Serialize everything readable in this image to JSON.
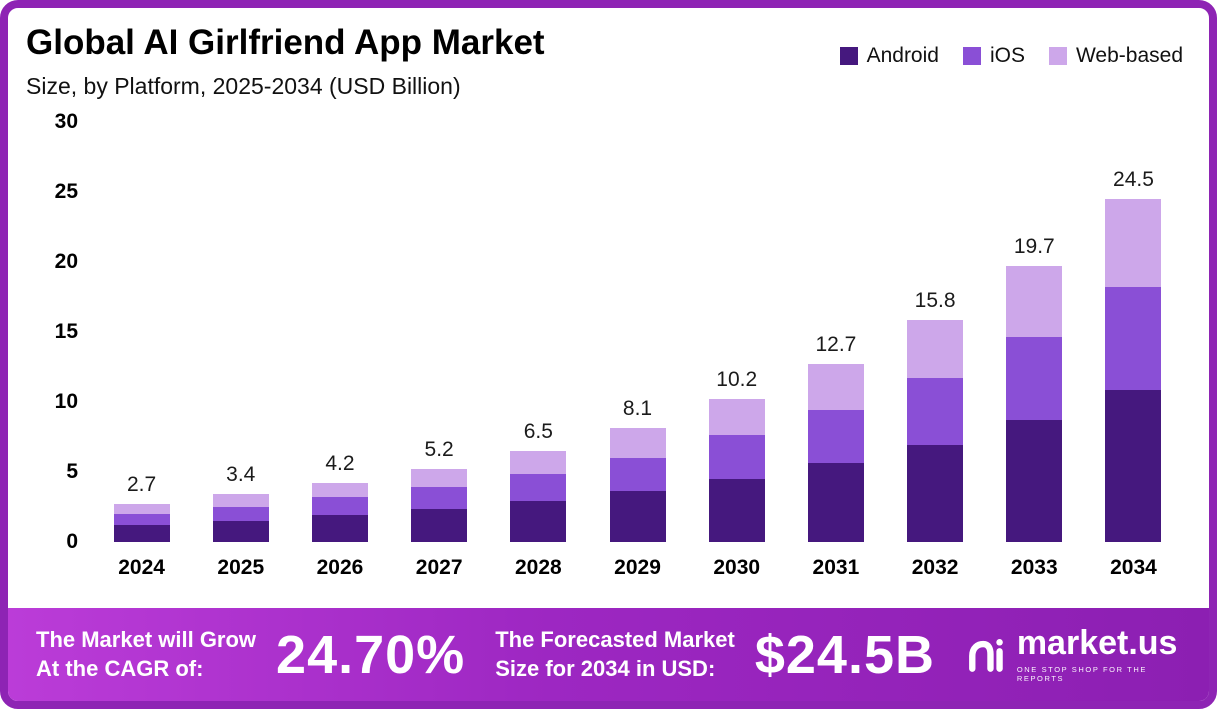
{
  "header": {
    "title": "Global AI Girlfriend App Market",
    "subtitle": "Size, by Platform, 2025-2034 (USD Billion)"
  },
  "legend": [
    {
      "label": "Android",
      "color": "#45187e"
    },
    {
      "label": "iOS",
      "color": "#8a4fd6"
    },
    {
      "label": "Web-based",
      "color": "#cda7ea"
    }
  ],
  "chart_data": {
    "type": "bar",
    "stacked": true,
    "title": "Global AI Girlfriend App Market Size, by Platform, 2025-2034 (USD Billion)",
    "categories": [
      "2024",
      "2025",
      "2026",
      "2027",
      "2028",
      "2029",
      "2030",
      "2031",
      "2032",
      "2033",
      "2034"
    ],
    "series": [
      {
        "name": "Android",
        "color": "#45187e",
        "values": [
          1.2,
          1.5,
          1.9,
          2.3,
          2.9,
          3.6,
          4.5,
          5.6,
          6.9,
          8.7,
          10.8
        ]
      },
      {
        "name": "iOS",
        "color": "#8a4fd6",
        "values": [
          0.8,
          1.0,
          1.3,
          1.6,
          1.9,
          2.4,
          3.1,
          3.8,
          4.8,
          5.9,
          7.4
        ]
      },
      {
        "name": "Web-based",
        "color": "#cda7ea",
        "values": [
          0.7,
          0.9,
          1.0,
          1.3,
          1.7,
          2.1,
          2.6,
          3.3,
          4.1,
          5.1,
          6.3
        ]
      }
    ],
    "totals": [
      2.7,
      3.4,
      4.2,
      5.2,
      6.5,
      8.1,
      10.2,
      12.7,
      15.8,
      19.7,
      24.5
    ],
    "xlabel": "",
    "ylabel": "",
    "ylim": [
      0,
      30
    ],
    "yticks": [
      0,
      5,
      10,
      15,
      20,
      25,
      30
    ],
    "grid": false,
    "legend_position": "top-right"
  },
  "banner": {
    "cagr_label_line1": "The Market will Grow",
    "cagr_label_line2": "At the CAGR of:",
    "cagr_value": "24.70%",
    "forecast_label_line1": "The Forecasted Market",
    "forecast_label_line2": "Size for 2034 in USD:",
    "forecast_value": "$24.5B",
    "brand": "market.us",
    "brand_tagline": "ONE STOP SHOP FOR THE REPORTS"
  },
  "colors": {
    "frame_border": "#8e24b4",
    "banner_gradient_start": "#bb3cd8",
    "banner_gradient_end": "#8c1fb2",
    "android": "#45187e",
    "ios": "#8a4fd6",
    "web_based": "#cda7ea"
  }
}
